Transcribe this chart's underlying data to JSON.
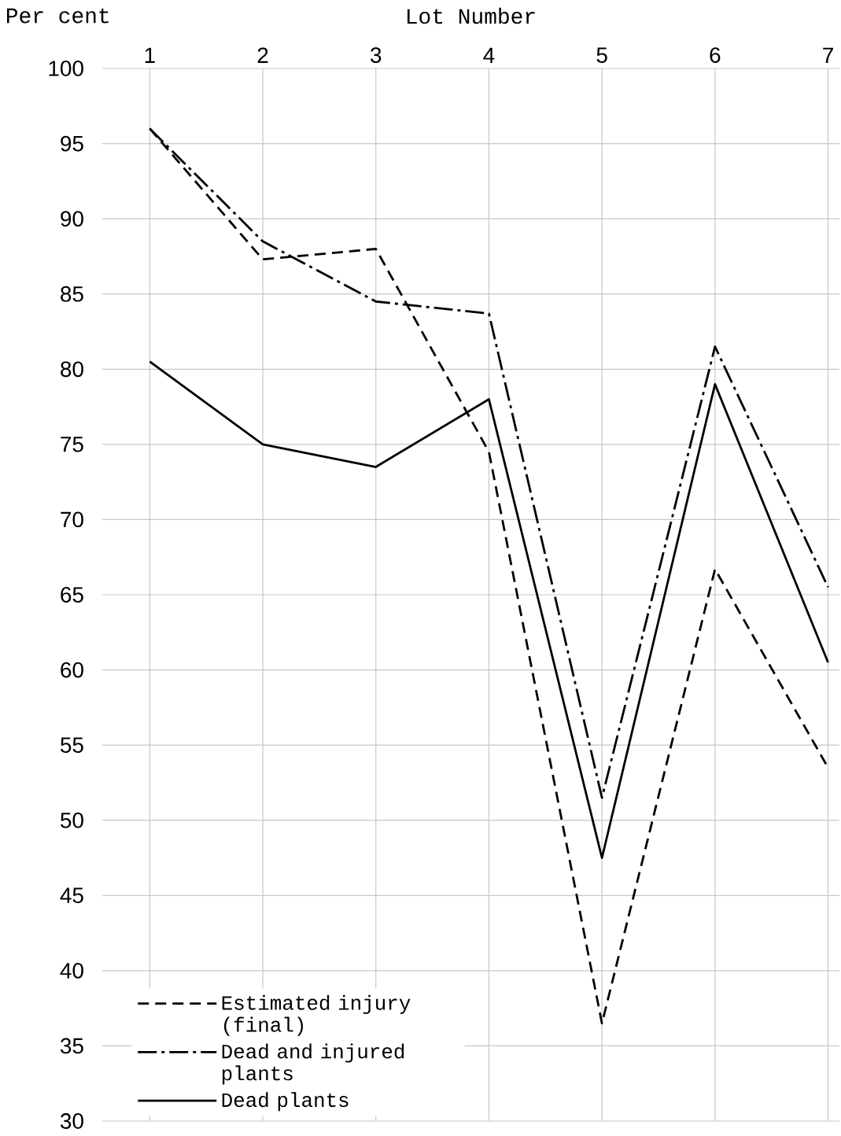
{
  "chart_data": {
    "type": "line",
    "xlabel": "Lot Number",
    "ylabel": "Per cent",
    "categories": [
      "1",
      "2",
      "3",
      "4",
      "5",
      "6",
      "7"
    ],
    "series": [
      {
        "name": "Estimated injury (final)",
        "color": "#000000",
        "line_style": "dashed",
        "values": [
          96,
          87.3,
          88,
          74.5,
          36.5,
          66.7,
          53.5
        ]
      },
      {
        "name": "Dead and injured plants",
        "color": "#000000",
        "line_style": "dashdot",
        "values": [
          96,
          88.5,
          84.5,
          83.7,
          51.5,
          81.5,
          65.5
        ]
      },
      {
        "name": "Dead plants",
        "color": "#000000",
        "line_style": "solid",
        "values": [
          80.5,
          75,
          73.5,
          78,
          47.5,
          79,
          60.5
        ]
      }
    ],
    "ylim": [
      30,
      100
    ],
    "yticks": [
      30,
      35,
      40,
      45,
      50,
      55,
      60,
      65,
      70,
      75,
      80,
      85,
      90,
      95,
      100
    ],
    "grid": true,
    "legend": "bottom left"
  }
}
